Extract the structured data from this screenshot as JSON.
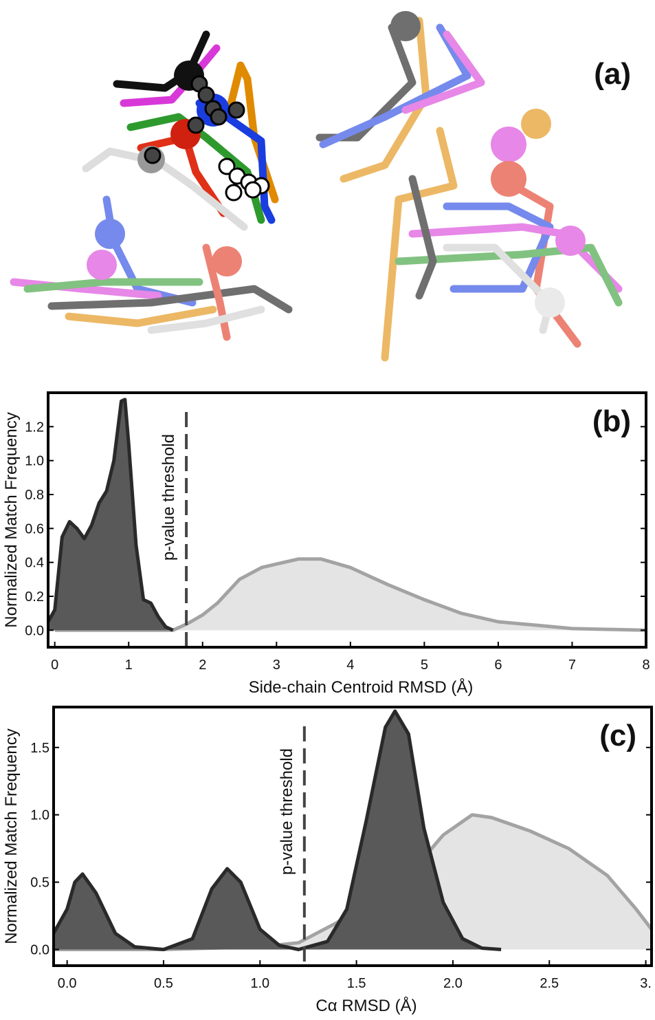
{
  "panel_a": {
    "label": "(a)"
  },
  "chart_data": [
    {
      "type": "area",
      "panel_label": "(b)",
      "x_label": "Side-chain Centroid RMSD (Å)",
      "y_label": "Normalized Match Frequency",
      "xlim": [
        -0.09,
        8.0
      ],
      "ylim": [
        -0.1,
        1.4
      ],
      "xticks": [
        0,
        1,
        2,
        3,
        4,
        5,
        6,
        7,
        8
      ],
      "yticks": [
        {
          "value": 0,
          "label": "0.0"
        },
        {
          "value": 0.2,
          "label": "0.2"
        },
        {
          "value": 0.4,
          "label": "0.4"
        },
        {
          "value": 0.6,
          "label": "0.6"
        },
        {
          "value": 0.8,
          "label": "0.8"
        },
        {
          "value": 1.0,
          "label": "1.0"
        },
        {
          "value": 1.2,
          "label": "1.2"
        }
      ],
      "threshold": {
        "x": 1.78,
        "label": "p-value threshold"
      },
      "series": [
        {
          "color": "#e4e4e4",
          "edge_color": "#a3a3a3",
          "x": [
            0,
            1.6,
            1.8,
            2.0,
            2.2,
            2.5,
            2.8,
            3.0,
            3.3,
            3.6,
            4.0,
            4.5,
            5.0,
            5.5,
            6.0,
            6.5,
            7.0,
            7.5,
            8.0
          ],
          "values": [
            0,
            0,
            0.04,
            0.09,
            0.16,
            0.3,
            0.37,
            0.39,
            0.42,
            0.42,
            0.37,
            0.27,
            0.18,
            0.1,
            0.05,
            0.03,
            0.01,
            0.005,
            0
          ]
        },
        {
          "color": "#595959",
          "edge_color": "#2a2a2a",
          "x": [
            -0.09,
            0,
            0.1,
            0.2,
            0.3,
            0.4,
            0.5,
            0.6,
            0.7,
            0.8,
            0.9,
            0.95,
            1.0,
            1.1,
            1.2,
            1.3,
            1.4,
            1.5,
            1.6
          ],
          "values": [
            0.05,
            0.12,
            0.55,
            0.64,
            0.6,
            0.54,
            0.62,
            0.75,
            0.82,
            1.0,
            1.35,
            1.36,
            1.1,
            0.5,
            0.18,
            0.16,
            0.08,
            0.02,
            0
          ]
        }
      ]
    },
    {
      "type": "area",
      "panel_label": "(c)",
      "x_label": "Cα RMSD (Å)",
      "y_label": "Normalized Match Frequency",
      "xlim": [
        -0.07,
        3.03
      ],
      "ylim": [
        -0.12,
        1.8
      ],
      "xticks": [
        {
          "value": 0,
          "label": "0.0"
        },
        {
          "value": 0.5,
          "label": "0.5"
        },
        {
          "value": 1.0,
          "label": "1.0"
        },
        {
          "value": 1.5,
          "label": "1.5"
        },
        {
          "value": 2.0,
          "label": "2.0"
        },
        {
          "value": 2.5,
          "label": "2.5"
        },
        {
          "value": 3.0,
          "label": "3."
        }
      ],
      "yticks": [
        {
          "value": 0,
          "label": "0.0"
        },
        {
          "value": 0.5,
          "label": "0.5"
        },
        {
          "value": 1.0,
          "label": "1.0"
        },
        {
          "value": 1.5,
          "label": "1.5"
        }
      ],
      "threshold": {
        "x": 1.23,
        "label": "p-value threshold"
      },
      "series": [
        {
          "color": "#e4e4e4",
          "edge_color": "#a3a3a3",
          "x": [
            -0.07,
            0.5,
            1.0,
            1.2,
            1.4,
            1.6,
            1.8,
            1.95,
            2.1,
            2.2,
            2.4,
            2.6,
            2.8,
            2.95,
            3.03
          ],
          "values": [
            0,
            0,
            0.02,
            0.05,
            0.2,
            0.4,
            0.6,
            0.85,
            1.0,
            0.98,
            0.88,
            0.75,
            0.55,
            0.3,
            0.15
          ]
        },
        {
          "color": "#595959",
          "edge_color": "#2a2a2a",
          "x": [
            -0.07,
            0,
            0.04,
            0.08,
            0.15,
            0.25,
            0.35,
            0.5,
            0.65,
            0.75,
            0.83,
            0.9,
            1.0,
            1.1,
            1.2,
            1.35,
            1.45,
            1.55,
            1.65,
            1.7,
            1.77,
            1.85,
            1.95,
            2.05,
            2.15,
            2.25
          ],
          "values": [
            0.12,
            0.3,
            0.5,
            0.56,
            0.42,
            0.12,
            0.02,
            0,
            0.08,
            0.45,
            0.6,
            0.5,
            0.15,
            0.03,
            0,
            0.06,
            0.3,
            0.95,
            1.65,
            1.77,
            1.6,
            0.9,
            0.35,
            0.08,
            0.01,
            0
          ]
        }
      ]
    }
  ]
}
